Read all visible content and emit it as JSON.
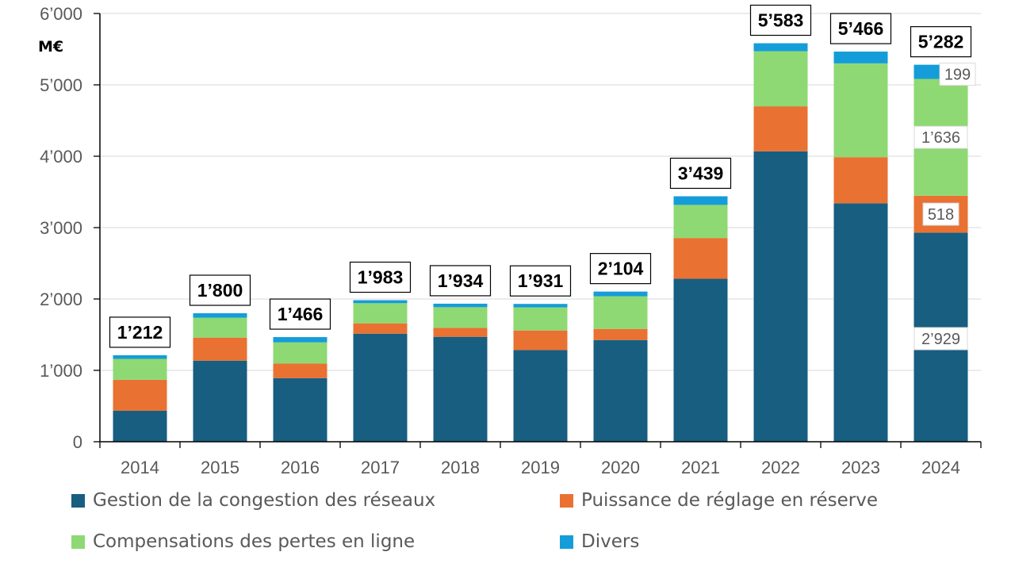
{
  "chart_data": {
    "type": "bar",
    "stacked": true,
    "title": "",
    "unit_label": "M€",
    "xlabel": "",
    "ylabel": "M€",
    "ylim": [
      0,
      6000
    ],
    "yticks": [
      0,
      1000,
      2000,
      3000,
      4000,
      5000,
      6000
    ],
    "ytick_labels": [
      "0",
      "1’000",
      "2’000",
      "3’000",
      "4’000",
      "5’000",
      "6’000"
    ],
    "grid": true,
    "legend_position": "bottom",
    "categories": [
      "2014",
      "2015",
      "2016",
      "2017",
      "2018",
      "2019",
      "2020",
      "2021",
      "2022",
      "2023",
      "2024"
    ],
    "series": [
      {
        "name": "Gestion de la congestion des réseaux",
        "color": "#175E80",
        "values": [
          434,
          1136,
          891,
          1514,
          1470,
          1284,
          1425,
          2283,
          4068,
          3341,
          2929
        ]
      },
      {
        "name": "Puissance de réglage en réserve",
        "color": "#E97132",
        "values": [
          434,
          323,
          204,
          145,
          126,
          275,
          156,
          571,
          631,
          646,
          518
        ]
      },
      {
        "name": "Compensations des pertes en ligne",
        "color": "#8ED973",
        "values": [
          293,
          278,
          297,
          282,
          289,
          323,
          457,
          464,
          772,
          1314,
          1636
        ]
      },
      {
        "name": "Divers",
        "color": "#149DD8",
        "values": [
          51,
          63,
          74,
          42,
          49,
          49,
          66,
          121,
          112,
          165,
          199
        ]
      }
    ],
    "totals": [
      1212,
      1800,
      1466,
      1983,
      1934,
      1931,
      2104,
      3439,
      5583,
      5466,
      5282
    ],
    "total_labels": [
      "1’212",
      "1’800",
      "1’466",
      "1’983",
      "1’934",
      "1’931",
      "2’104",
      "3’439",
      "5’583",
      "5’466",
      "5’282"
    ],
    "segment_labels": {
      "category": "2024",
      "labels": [
        "2’929",
        "518",
        "1’636",
        "199"
      ]
    }
  }
}
